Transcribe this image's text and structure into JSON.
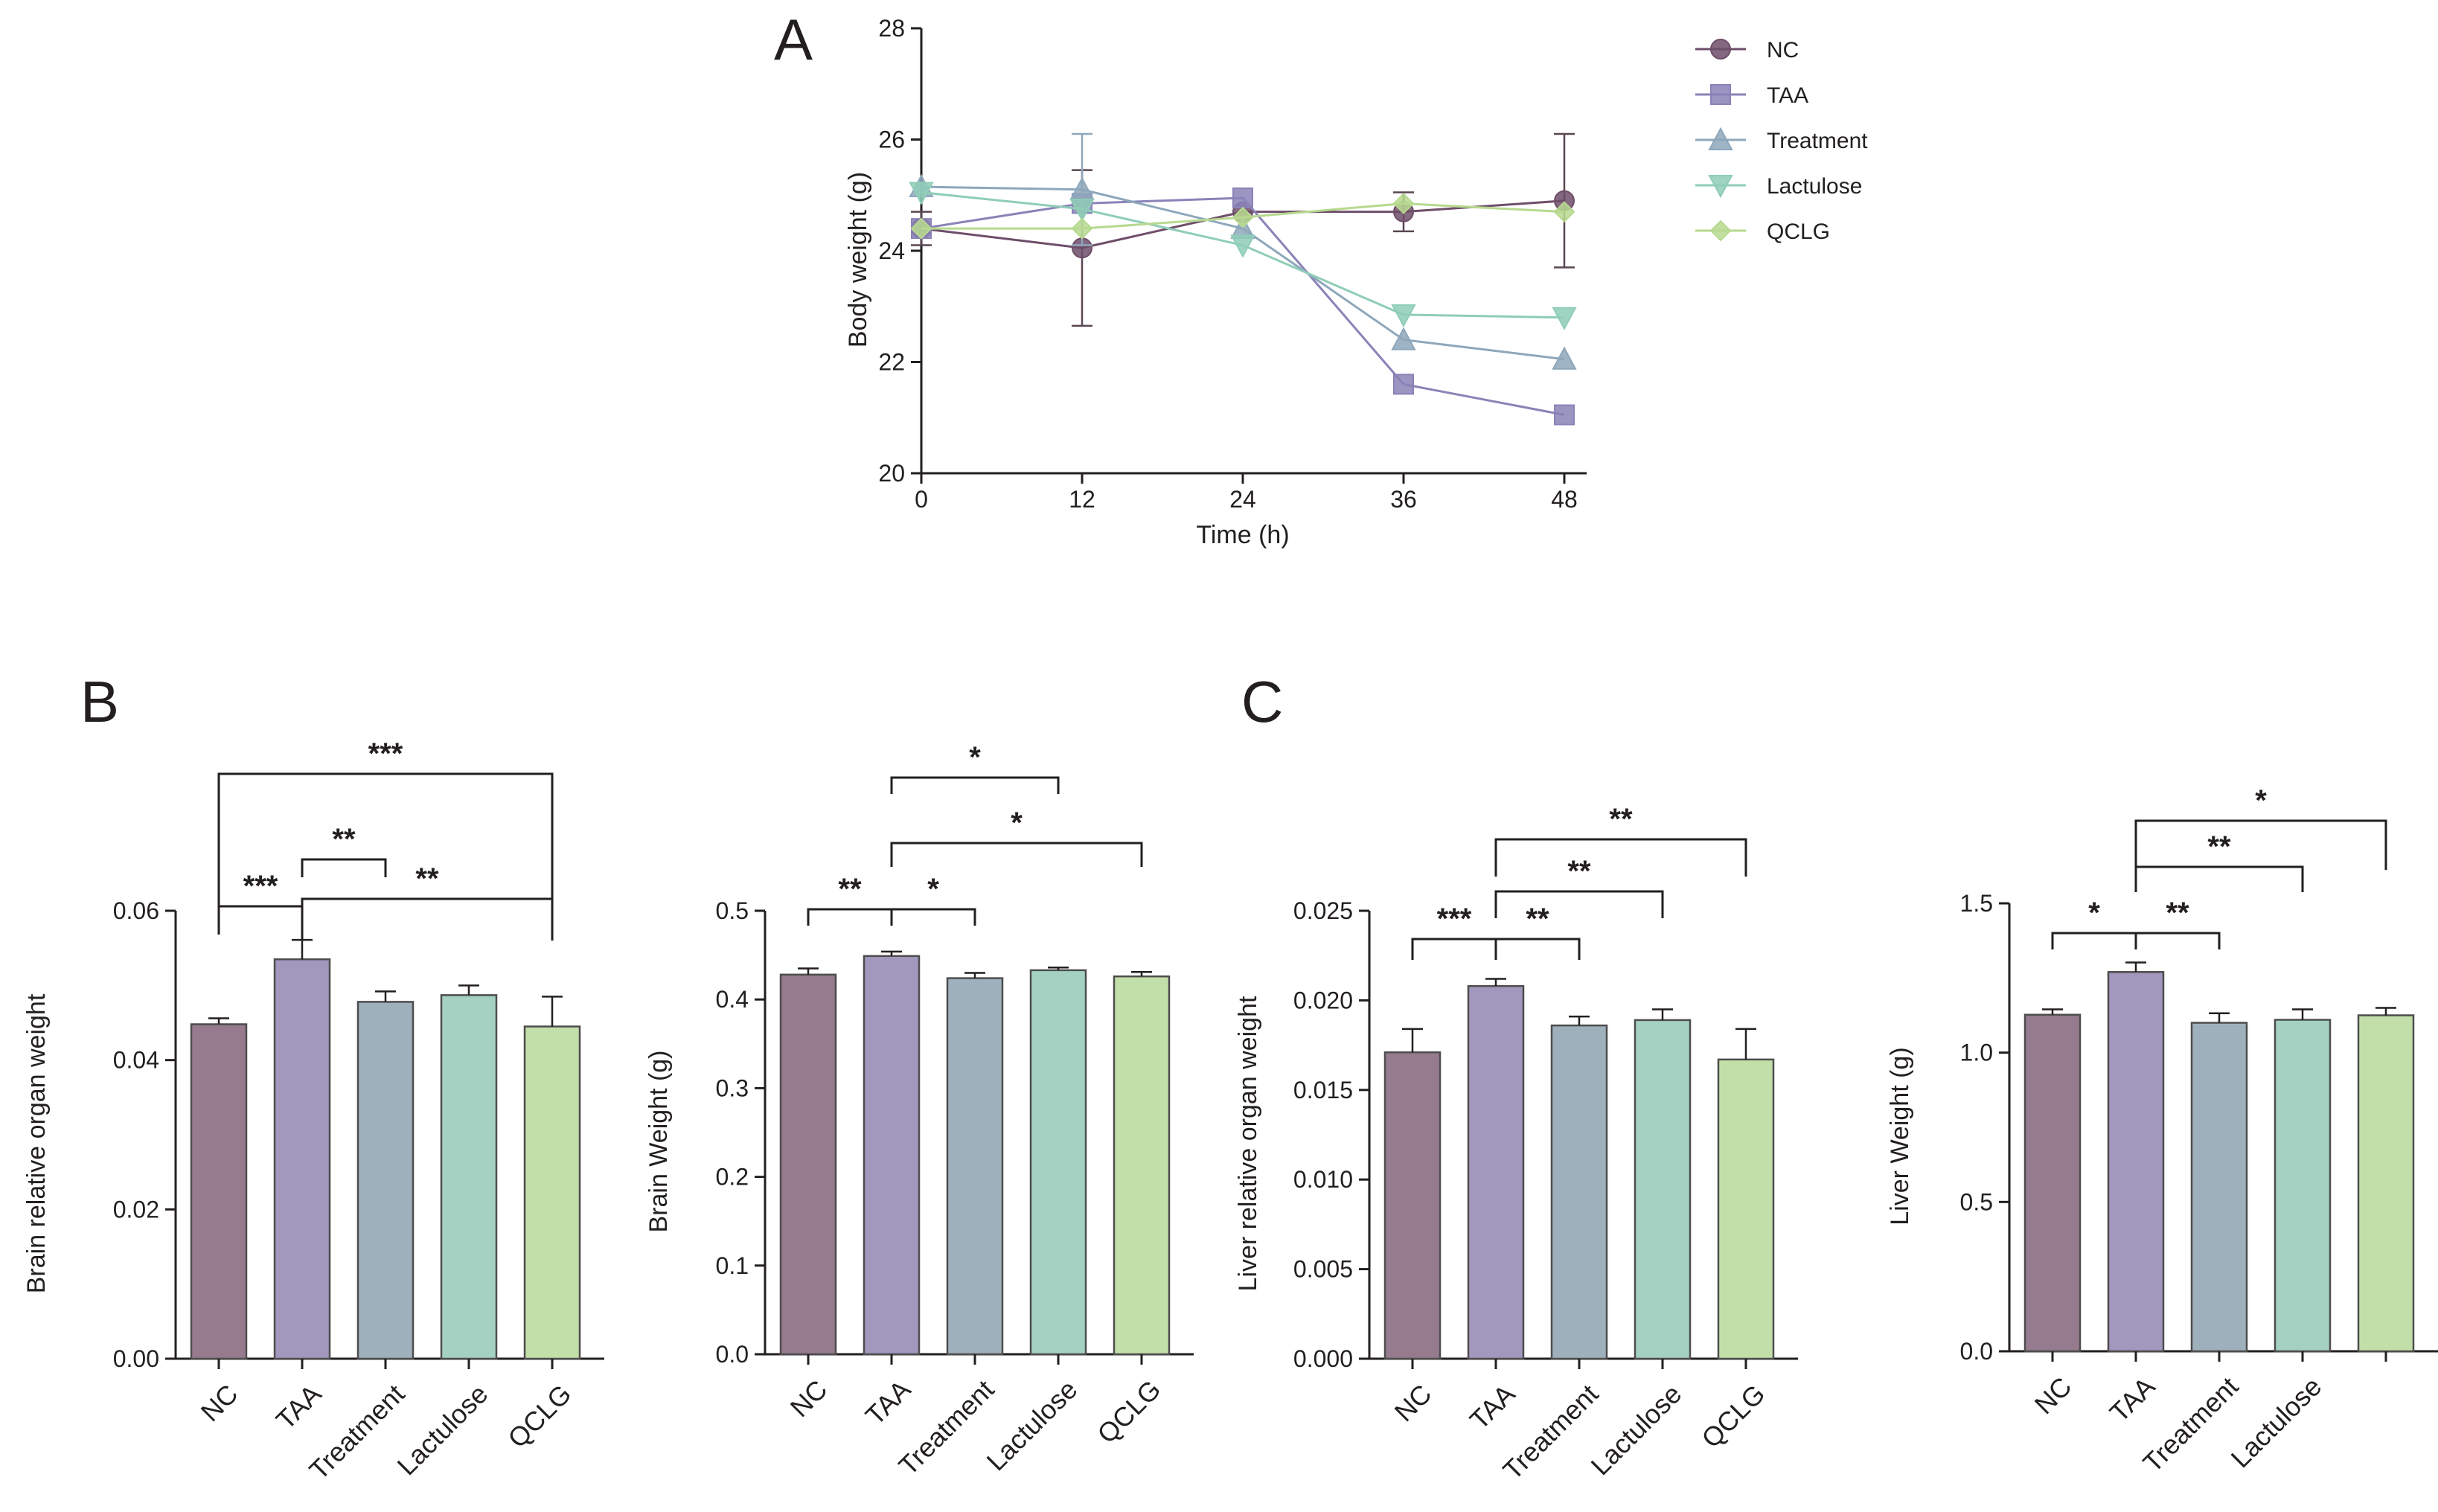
{
  "colors": {
    "axis": "#231f20",
    "bar_edge": "#4d4d4d",
    "NC": "#967a8e",
    "TAA": "#a297bd",
    "Treatment": "#9eb0bc",
    "Lactulose": "#a4d1c1",
    "QCLG": "#c3dfa9",
    "line_NC": "#6e4e69",
    "line_TAA": "#8a83b7",
    "line_Treatment": "#8ea7bb",
    "line_Lactulose": "#8fcdb7",
    "line_QCLG": "#b7d98f"
  },
  "chart_data": [
    {
      "id": "A",
      "type": "line",
      "panel_label": "A",
      "xlabel": "Time (h)",
      "ylabel": "Body weight (g)",
      "x": [
        0,
        12,
        24,
        36,
        48
      ],
      "xticks": [
        "0",
        "12",
        "24",
        "36",
        "48"
      ],
      "ylim": [
        20,
        28
      ],
      "yticks": [
        "20",
        "22",
        "24",
        "26",
        "28"
      ],
      "legend_position": "right",
      "series": [
        {
          "name": "NC",
          "marker": "circle",
          "values": [
            24.4,
            24.05,
            24.7,
            24.7,
            24.9
          ],
          "errors": [
            0.3,
            1.4,
            0.0,
            0.35,
            1.2
          ]
        },
        {
          "name": "TAA",
          "marker": "square",
          "values": [
            24.4,
            24.85,
            24.95,
            21.6,
            21.05
          ],
          "errors": [
            0,
            0,
            0,
            0,
            0
          ]
        },
        {
          "name": "Treatment",
          "marker": "triangle-up",
          "values": [
            25.15,
            25.1,
            24.4,
            22.4,
            22.05
          ],
          "errors": [
            0,
            1.0,
            0,
            0,
            0
          ]
        },
        {
          "name": "Lactulose",
          "marker": "triangle-down",
          "values": [
            25.05,
            24.75,
            24.1,
            22.85,
            22.8
          ],
          "errors": [
            0,
            0,
            0,
            0,
            0
          ]
        },
        {
          "name": "QCLG",
          "marker": "diamond",
          "values": [
            24.4,
            24.4,
            24.6,
            24.85,
            24.7
          ],
          "errors": [
            0,
            0,
            0,
            0,
            0
          ]
        }
      ]
    },
    {
      "id": "B1",
      "type": "bar",
      "panel_label": "B",
      "ylabel": "Brain relative organ weight",
      "categories": [
        "NC",
        "TAA",
        "Treatment",
        "Lactulose",
        "QCLG"
      ],
      "values": [
        0.0448,
        0.0535,
        0.0478,
        0.0487,
        0.0445
      ],
      "errors": [
        0.0008,
        0.0026,
        0.0014,
        0.0013,
        0.004
      ],
      "ylim": [
        0,
        0.06
      ],
      "yticks": [
        "0.00",
        "0.02",
        "0.04",
        "0.06"
      ],
      "significance": [
        {
          "from": 0,
          "to": 1,
          "label": "***"
        },
        {
          "from": 1,
          "to": 2,
          "label": "**"
        },
        {
          "from": 1,
          "to": 4,
          "label": "**"
        },
        {
          "from": 0,
          "to": 4,
          "label": "***"
        }
      ]
    },
    {
      "id": "B2",
      "type": "bar",
      "panel_label": "",
      "ylabel": "Brain Weight (g)",
      "categories": [
        "NC",
        "TAA",
        "Treatment",
        "Lactulose",
        "QCLG"
      ],
      "values": [
        0.428,
        0.449,
        0.424,
        0.433,
        0.426
      ],
      "errors": [
        0.007,
        0.005,
        0.006,
        0.003,
        0.005
      ],
      "ylim": [
        0,
        0.5
      ],
      "yticks": [
        "0.0",
        "0.1",
        "0.2",
        "0.3",
        "0.4",
        "0.5"
      ],
      "significance": [
        {
          "from": 0,
          "to": 1,
          "label": "**"
        },
        {
          "from": 1,
          "to": 2,
          "label": "*"
        },
        {
          "from": 1,
          "to": 4,
          "label": "*"
        },
        {
          "from": 1,
          "to": 3,
          "label": "*"
        }
      ]
    },
    {
      "id": "C1",
      "type": "bar",
      "panel_label": "C",
      "ylabel": "Liver relative organ weight",
      "categories": [
        "NC",
        "TAA",
        "Treatment",
        "Lactulose",
        "QCLG"
      ],
      "values": [
        0.0171,
        0.0208,
        0.0186,
        0.0189,
        0.0167
      ],
      "errors": [
        0.0013,
        0.0004,
        0.0005,
        0.0006,
        0.0017
      ],
      "ylim": [
        0,
        0.025
      ],
      "yticks": [
        "0.000",
        "0.005",
        "0.010",
        "0.015",
        "0.020",
        "0.025"
      ],
      "significance": [
        {
          "from": 0,
          "to": 1,
          "label": "***"
        },
        {
          "from": 1,
          "to": 2,
          "label": "**"
        },
        {
          "from": 1,
          "to": 3,
          "label": "**"
        },
        {
          "from": 1,
          "to": 4,
          "label": "**"
        }
      ]
    },
    {
      "id": "C2",
      "type": "bar",
      "panel_label": "",
      "ylabel": "Liver Weight (g)",
      "categories": [
        "NC",
        "TAA",
        "Treatment",
        "Lactulose",
        ""
      ],
      "values": [
        1.127,
        1.27,
        1.1,
        1.11,
        1.125
      ],
      "errors": [
        0.018,
        0.032,
        0.032,
        0.035,
        0.025
      ],
      "ylim": [
        0,
        1.5
      ],
      "yticks": [
        "0.0",
        "0.5",
        "1.0",
        "1.5"
      ],
      "significance": [
        {
          "from": 0,
          "to": 1,
          "label": "*"
        },
        {
          "from": 1,
          "to": 2,
          "label": "**"
        },
        {
          "from": 1,
          "to": 3,
          "label": "**"
        },
        {
          "from": 1,
          "to": 4,
          "label": "*"
        }
      ]
    }
  ]
}
